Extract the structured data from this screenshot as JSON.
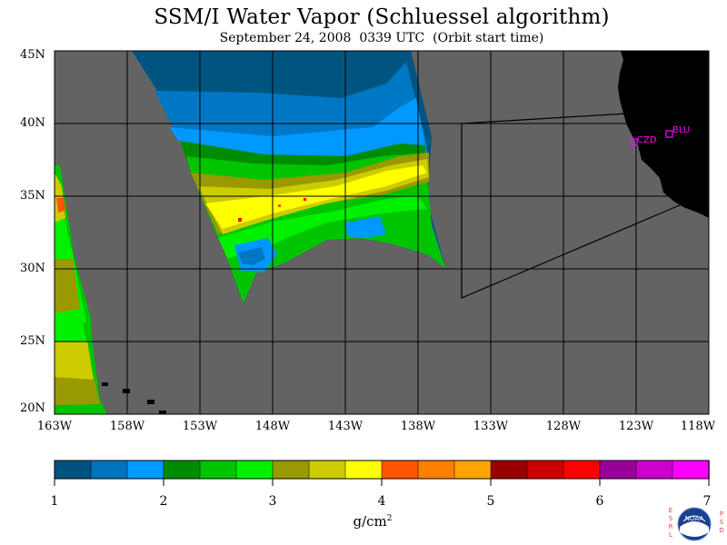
{
  "title": "SSM/I Water Vapor (Schluessel algorithm)",
  "subtitle": "September 24, 2008  0339 UTC  (Orbit start time)",
  "map": {
    "lat_labels": [
      "45N",
      "40N",
      "35N",
      "30N",
      "25N",
      "20N"
    ],
    "lon_labels": [
      "163W",
      "158W",
      "153W",
      "148W",
      "143W",
      "138W",
      "133W",
      "128W",
      "123W",
      "118W"
    ],
    "stations": [
      {
        "code": "CZD"
      },
      {
        "code": "BLU"
      }
    ],
    "colors": {
      "land": "#000000",
      "ocean_no_data": "#636363",
      "grid": "#000000",
      "station": "#ff00ff"
    }
  },
  "colorbar": {
    "ticks": [
      "1",
      "2",
      "3",
      "4",
      "5",
      "6",
      "7"
    ],
    "colors": [
      "#00527f",
      "#0073bf",
      "#0099ff",
      "#008c00",
      "#00c400",
      "#00f000",
      "#999900",
      "#cccc00",
      "#ffff00",
      "#ff5500",
      "#ff7f00",
      "#ffa500",
      "#990000",
      "#cc0000",
      "#ff0000",
      "#990099",
      "#cc00cc",
      "#ff00ff"
    ],
    "units": "g/cm",
    "units_exp": "2"
  },
  "logo": {
    "text": "NOAA",
    "left_letters": [
      "E",
      "S",
      "R",
      "L"
    ],
    "right_letters": [
      "P",
      "S",
      "D"
    ]
  }
}
